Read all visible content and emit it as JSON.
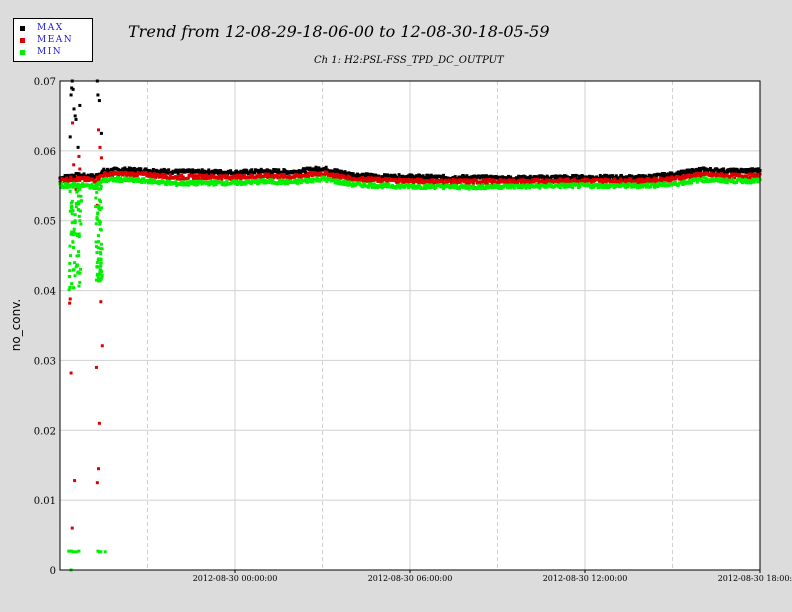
{
  "legend": {
    "items": [
      {
        "label": "MAX",
        "color": "#000000"
      },
      {
        "label": "MEAN",
        "color": "#dd0000"
      },
      {
        "label": "MIN",
        "color": "#00ee00"
      }
    ]
  },
  "chart_data": {
    "type": "scatter",
    "title": "Trend from 12-08-29-18-06-00 to 12-08-30-18-05-59",
    "subtitle": "Ch 1: H2:PSL-FSS_TPD_DC_OUTPUT",
    "xlabel": "",
    "ylabel": "no_conv.",
    "x_range": [
      "2012-08-29 18:06:00",
      "2012-08-30 18:05:59"
    ],
    "ylim": [
      0,
      0.07
    ],
    "y_ticks": [
      "0",
      "0.01",
      "0.02",
      "0.03",
      "0.04",
      "0.05",
      "0.06",
      "0.07"
    ],
    "x_ticks": [
      "2012-08-30 00:00:00",
      "2012-08-30 06:00:00",
      "2012-08-30 12:00:00",
      "2012-08-30 18:00:00"
    ],
    "x_tick_hours": [
      6,
      12,
      18,
      24
    ],
    "grid": true,
    "legend_position": "top-left",
    "series": [
      {
        "name": "MAX",
        "color": "#000000",
        "baseline": [
          [
            0,
            0.0561
          ],
          [
            0.5,
            0.0565
          ],
          [
            1.2,
            0.0563
          ],
          [
            1.5,
            0.0571
          ],
          [
            2,
            0.0573
          ],
          [
            3,
            0.0572
          ],
          [
            4,
            0.057
          ],
          [
            5,
            0.057
          ],
          [
            6,
            0.0569
          ],
          [
            7,
            0.0571
          ],
          [
            8,
            0.057
          ],
          [
            9,
            0.0575
          ],
          [
            10,
            0.0566
          ],
          [
            11,
            0.0563
          ],
          [
            12,
            0.0563
          ],
          [
            13,
            0.0562
          ],
          [
            14,
            0.0562
          ],
          [
            15,
            0.0561
          ],
          [
            16,
            0.0561
          ],
          [
            17,
            0.0562
          ],
          [
            18,
            0.0562
          ],
          [
            19,
            0.0562
          ],
          [
            20,
            0.0562
          ],
          [
            21,
            0.0566
          ],
          [
            22,
            0.0573
          ],
          [
            23,
            0.0571
          ],
          [
            24,
            0.0572
          ]
        ],
        "outliers": [
          [
            0.35,
            0.062
          ],
          [
            0.38,
            0.068
          ],
          [
            0.4,
            0.069
          ],
          [
            0.42,
            0.07
          ],
          [
            0.45,
            0.0688
          ],
          [
            0.48,
            0.066
          ],
          [
            0.52,
            0.065
          ],
          [
            0.55,
            0.0645
          ],
          [
            0.62,
            0.0605
          ],
          [
            0.68,
            0.0665
          ],
          [
            1.28,
            0.07
          ],
          [
            1.3,
            0.068
          ],
          [
            1.35,
            0.0672
          ],
          [
            1.42,
            0.0625
          ]
        ]
      },
      {
        "name": "MEAN",
        "color": "#dd0000",
        "baseline": [
          [
            0,
            0.0558
          ],
          [
            0.5,
            0.056
          ],
          [
            1.2,
            0.0558
          ],
          [
            1.5,
            0.0566
          ],
          [
            2,
            0.0567
          ],
          [
            3,
            0.0566
          ],
          [
            4,
            0.0562
          ],
          [
            5,
            0.0563
          ],
          [
            6,
            0.0562
          ],
          [
            7,
            0.0564
          ],
          [
            8,
            0.0563
          ],
          [
            9,
            0.0568
          ],
          [
            10,
            0.056
          ],
          [
            11,
            0.0558
          ],
          [
            12,
            0.0557
          ],
          [
            13,
            0.0556
          ],
          [
            14,
            0.0556
          ],
          [
            15,
            0.0556
          ],
          [
            16,
            0.0556
          ],
          [
            17,
            0.0557
          ],
          [
            18,
            0.0557
          ],
          [
            19,
            0.0557
          ],
          [
            20,
            0.0557
          ],
          [
            21,
            0.056
          ],
          [
            22,
            0.0566
          ],
          [
            23,
            0.0564
          ],
          [
            24,
            0.0564
          ]
        ],
        "outliers": [
          [
            0.33,
            0.0382
          ],
          [
            0.35,
            0.0388
          ],
          [
            0.38,
            0.0282
          ],
          [
            0.42,
            0.006
          ],
          [
            0.5,
            0.0128
          ],
          [
            0.4,
            0.052
          ],
          [
            0.43,
            0.064
          ],
          [
            0.47,
            0.058
          ],
          [
            0.55,
            0.0545
          ],
          [
            0.65,
            0.0592
          ],
          [
            0.68,
            0.0574
          ],
          [
            1.25,
            0.029
          ],
          [
            1.28,
            0.0125
          ],
          [
            1.32,
            0.0145
          ],
          [
            1.35,
            0.021
          ],
          [
            1.4,
            0.0384
          ],
          [
            1.45,
            0.0321
          ],
          [
            1.28,
            0.0522
          ],
          [
            1.32,
            0.063
          ],
          [
            1.37,
            0.0605
          ],
          [
            1.42,
            0.059
          ]
        ]
      },
      {
        "name": "MIN",
        "color": "#00ee00",
        "baseline": [
          [
            0,
            0.055
          ],
          [
            0.5,
            0.0551
          ],
          [
            1.2,
            0.0549
          ],
          [
            1.5,
            0.0558
          ],
          [
            2,
            0.0559
          ],
          [
            3,
            0.0557
          ],
          [
            4,
            0.0553
          ],
          [
            5,
            0.0554
          ],
          [
            6,
            0.0554
          ],
          [
            7,
            0.0556
          ],
          [
            8,
            0.0555
          ],
          [
            9,
            0.056
          ],
          [
            10,
            0.0552
          ],
          [
            11,
            0.055
          ],
          [
            12,
            0.0549
          ],
          [
            13,
            0.0549
          ],
          [
            14,
            0.0548
          ],
          [
            15,
            0.0549
          ],
          [
            16,
            0.0549
          ],
          [
            17,
            0.055
          ],
          [
            18,
            0.055
          ],
          [
            19,
            0.055
          ],
          [
            20,
            0.055
          ],
          [
            21,
            0.0552
          ],
          [
            22,
            0.0559
          ],
          [
            23,
            0.0557
          ],
          [
            24,
            0.0557
          ]
        ],
        "outliers": [
          [
            0.3,
            0.0027
          ],
          [
            0.35,
            0.0027
          ],
          [
            0.4,
            0.0027
          ],
          [
            0.45,
            0.0026
          ],
          [
            0.55,
            0.0026
          ],
          [
            0.65,
            0.0027
          ],
          [
            1.3,
            0.0027
          ],
          [
            1.35,
            0.0026
          ],
          [
            1.4,
            0.0026
          ],
          [
            1.55,
            0.0026
          ],
          [
            0.38,
            0.0
          ],
          [
            0.32,
            0.042
          ],
          [
            0.36,
            0.045
          ],
          [
            0.4,
            0.041
          ],
          [
            0.44,
            0.047
          ],
          [
            0.48,
            0.043
          ],
          [
            0.52,
            0.05
          ],
          [
            0.56,
            0.052
          ],
          [
            0.6,
            0.048
          ],
          [
            0.64,
            0.045
          ],
          [
            0.68,
            0.05
          ],
          [
            0.72,
            0.0535
          ],
          [
            0.42,
            0.051
          ],
          [
            0.46,
            0.0548
          ],
          [
            0.5,
            0.044
          ],
          [
            1.25,
            0.0415
          ],
          [
            1.28,
            0.044
          ],
          [
            1.32,
            0.047
          ],
          [
            1.36,
            0.0495
          ],
          [
            1.4,
            0.046
          ],
          [
            1.3,
            0.052
          ],
          [
            1.34,
            0.0545
          ],
          [
            1.38,
            0.043
          ]
        ]
      }
    ]
  }
}
